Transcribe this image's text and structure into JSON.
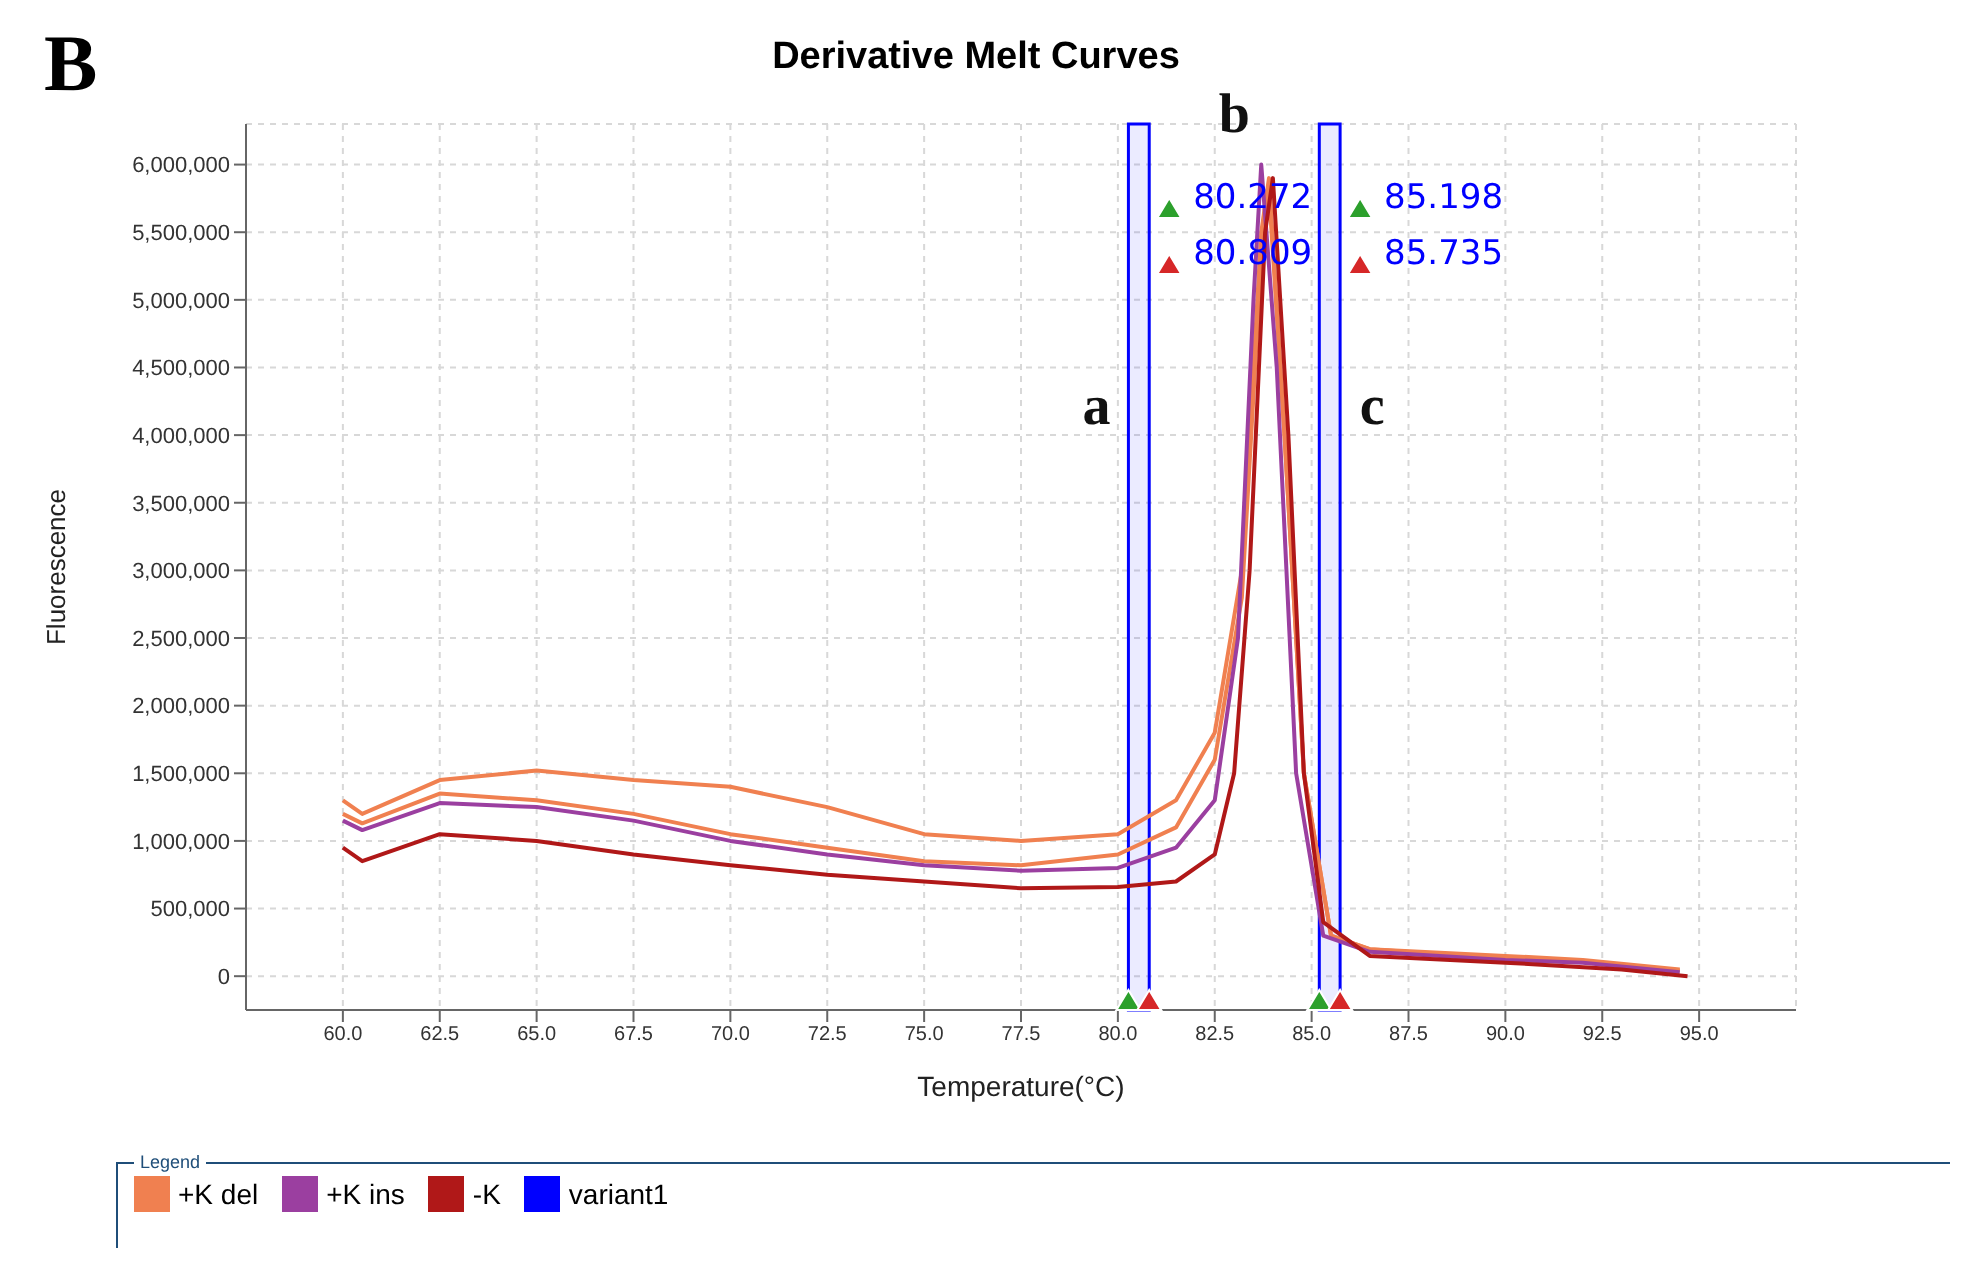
{
  "chart_data": {
    "type": "line",
    "title": "Derivative Melt Curves",
    "xlabel": "Temperature(°C)",
    "ylabel": "Fluorescence",
    "legend_title": "Legend",
    "xlim": [
      57.5,
      97.5
    ],
    "xticks": [
      {
        "value": 60,
        "label": "60.0"
      },
      {
        "value": 62.5,
        "label": "62.5"
      },
      {
        "value": 65,
        "label": "65.0"
      },
      {
        "value": 67.5,
        "label": "67.5"
      },
      {
        "value": 70,
        "label": "70.0"
      },
      {
        "value": 72.5,
        "label": "72.5"
      },
      {
        "value": 75,
        "label": "75.0"
      },
      {
        "value": 77.5,
        "label": "77.5"
      },
      {
        "value": 80,
        "label": "80.0"
      },
      {
        "value": 82.5,
        "label": "82.5"
      },
      {
        "value": 85,
        "label": "85.0"
      },
      {
        "value": 87.5,
        "label": "87.5"
      },
      {
        "value": 90,
        "label": "90.0"
      },
      {
        "value": 92.5,
        "label": "92.5"
      },
      {
        "value": 95,
        "label": "95.0"
      }
    ],
    "ylim": [
      -250000,
      6300000
    ],
    "yticks": [
      0,
      {
        "value": 500000,
        "label": "500,000"
      },
      {
        "value": 1000000,
        "label": "1,000,000"
      },
      {
        "value": 1500000,
        "label": "1,500,000"
      },
      {
        "value": 2000000,
        "label": "2,000,000"
      },
      {
        "value": 2500000,
        "label": "2,500,000"
      },
      {
        "value": 3000000,
        "label": "3,000,000"
      },
      {
        "value": 3500000,
        "label": "3,500,000"
      },
      {
        "value": 4000000,
        "label": "4,000,000"
      },
      {
        "value": 4500000,
        "label": "4,500,000"
      },
      {
        "value": 5000000,
        "label": "5,000,000"
      },
      {
        "value": 5500000,
        "label": "5,500,000"
      },
      {
        "value": 6000000,
        "label": "6,000,000"
      }
    ],
    "grid": true,
    "legend": "bottom",
    "marker": "none",
    "line_style": "solid",
    "series": [
      {
        "name": "+K del",
        "color": "#f08050",
        "x": [
          60,
          60.5,
          62.5,
          65,
          67.5,
          70,
          72.5,
          75,
          77.5,
          80,
          81.5,
          82.5,
          83.2,
          83.7,
          83.9,
          84.3,
          84.8,
          85.5,
          86.5,
          90,
          92,
          94.5
        ],
        "values": [
          1300000,
          1200000,
          1450000,
          1520000,
          1450000,
          1400000,
          1250000,
          1050000,
          1000000,
          1050000,
          1300000,
          1800000,
          3000000,
          5500000,
          5900000,
          4000000,
          1500000,
          300000,
          200000,
          150000,
          120000,
          50000
        ]
      },
      {
        "color": "#f08050",
        "x": [
          60,
          60.5,
          62.5,
          65,
          67.5,
          70,
          72.5,
          75,
          77.5,
          80,
          81.5,
          82.5,
          83.2,
          83.7,
          83.9,
          84.3,
          84.8,
          85.5,
          86.5,
          90,
          92,
          94.5
        ],
        "values": [
          1200000,
          1130000,
          1350000,
          1300000,
          1200000,
          1050000,
          950000,
          850000,
          820000,
          900000,
          1100000,
          1600000,
          2800000,
          5300000,
          5800000,
          4000000,
          1500000,
          300000,
          200000,
          130000,
          110000,
          40000
        ]
      },
      {
        "name": "+K ins",
        "color": "#9b3fa0",
        "x": [
          60,
          60.5,
          62.5,
          65,
          67.5,
          70,
          72.5,
          75,
          77.5,
          80,
          81.5,
          82.5,
          83.1,
          83.5,
          83.7,
          84.1,
          84.6,
          85.3,
          86.5,
          90,
          92,
          94.5
        ],
        "values": [
          1150000,
          1080000,
          1280000,
          1250000,
          1150000,
          1000000,
          900000,
          820000,
          780000,
          800000,
          950000,
          1300000,
          2500000,
          5000000,
          6000000,
          4500000,
          1500000,
          300000,
          180000,
          120000,
          100000,
          30000
        ]
      },
      {
        "name": "-K",
        "color": "#b01818",
        "x": [
          60,
          60.5,
          62.5,
          65,
          67.5,
          70,
          72.5,
          75,
          77.5,
          80,
          81.5,
          82.5,
          83,
          83.4,
          83.8,
          84,
          84.4,
          84.8,
          85.3,
          86.5,
          90,
          93,
          94.7
        ],
        "values": [
          950000,
          850000,
          1050000,
          1000000,
          900000,
          820000,
          750000,
          700000,
          650000,
          660000,
          700000,
          900000,
          1500000,
          3000000,
          5500000,
          5900000,
          4000000,
          1500000,
          400000,
          150000,
          100000,
          50000,
          0
        ]
      }
    ],
    "bands": [
      {
        "axis": "x",
        "from": 80.272,
        "to": 80.809,
        "label": "variant1",
        "color": "#0000ff"
      },
      {
        "axis": "x",
        "from": 85.198,
        "to": 85.735,
        "color": "#0000ff"
      }
    ],
    "annotations": [
      "B",
      "a",
      "b",
      "c",
      "80.272",
      "80.809",
      "85.198",
      "85.735"
    ]
  }
}
